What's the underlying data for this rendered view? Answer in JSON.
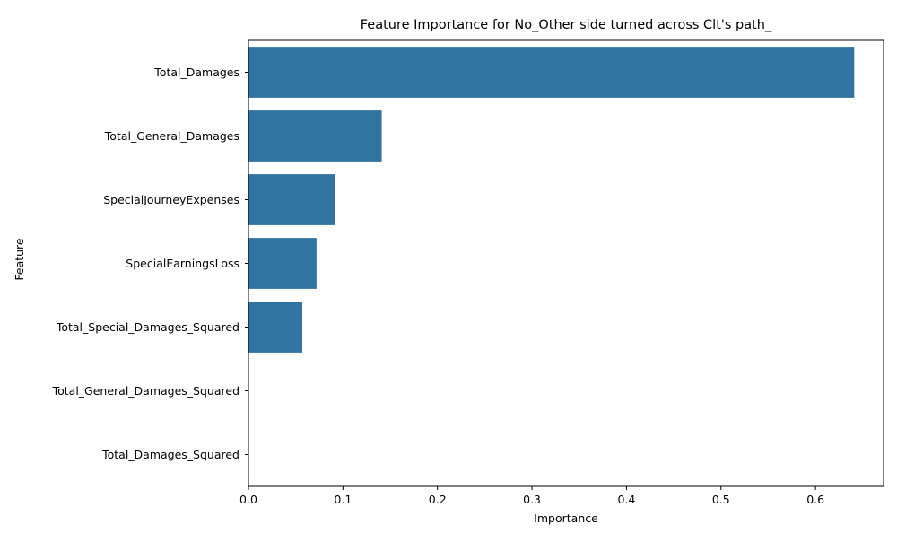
{
  "chart_data": {
    "type": "bar",
    "orientation": "horizontal",
    "title": "Feature Importance for No_Other side turned across Clt's path_",
    "xlabel": "Importance",
    "ylabel": "Feature",
    "categories": [
      "Total_Damages",
      "Total_General_Damages",
      "SpecialJourneyExpenses",
      "SpecialEarningsLoss",
      "Total_Special_Damages_Squared",
      "Total_General_Damages_Squared",
      "Total_Damages_Squared"
    ],
    "values": [
      0.641,
      0.141,
      0.092,
      0.072,
      0.057,
      0.0,
      0.0
    ],
    "xlim": [
      0,
      0.672
    ],
    "xticks": [
      "0.0",
      "0.1",
      "0.2",
      "0.3",
      "0.4",
      "0.5",
      "0.6"
    ],
    "grid": false,
    "bar_color": "#3274a1"
  }
}
